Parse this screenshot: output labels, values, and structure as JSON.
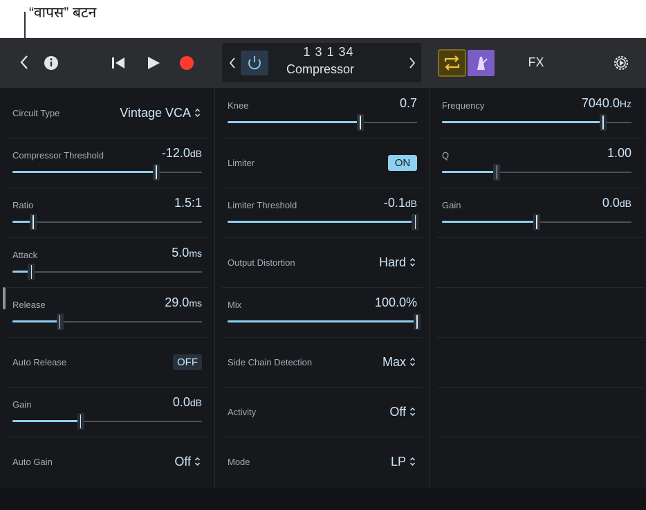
{
  "callout": {
    "label": "“वापस” बटन"
  },
  "toolbar": {
    "position": "1 3 1  34",
    "plugin": "Compressor",
    "fx": "FX"
  },
  "columns": [
    [
      {
        "kind": "menu",
        "label": "Circuit Type",
        "value": "Vintage VCA"
      },
      {
        "kind": "slider",
        "label": "Compressor Threshold",
        "value": "-12.0",
        "unit": "dB"
      },
      {
        "kind": "slider",
        "label": "Ratio",
        "value": "1.5:1"
      },
      {
        "kind": "slider",
        "label": "Attack",
        "value": "5.0",
        "unit": "ms"
      },
      {
        "kind": "slider",
        "label": "Release",
        "value": "29.0",
        "unit": "ms"
      },
      {
        "kind": "toggle",
        "active": false,
        "label": "Auto Release",
        "value": "OFF"
      },
      {
        "kind": "slider",
        "label": "Gain",
        "value": "0.0",
        "unit": "dB"
      },
      {
        "kind": "menu",
        "label": "Auto Gain",
        "value": "Off"
      }
    ],
    [
      {
        "kind": "slider",
        "label": "Knee",
        "value": "0.7"
      },
      {
        "kind": "toggle",
        "active": true,
        "label": "Limiter",
        "value": "ON"
      },
      {
        "kind": "slider",
        "label": "Limiter Threshold",
        "value": "-0.1",
        "unit": "dB"
      },
      {
        "kind": "menu",
        "label": "Output Distortion",
        "value": "Hard"
      },
      {
        "kind": "slider",
        "label": "Mix",
        "value": "100.0%"
      },
      {
        "kind": "menu",
        "label": "Side Chain Detection",
        "value": "Max"
      },
      {
        "kind": "menu",
        "label": "Activity",
        "value": "Off"
      },
      {
        "kind": "menu",
        "label": "Mode",
        "value": "LP"
      }
    ],
    [
      {
        "kind": "slider",
        "label": "Frequency",
        "value": "7040.0",
        "unit": "Hz"
      },
      {
        "kind": "slider",
        "label": "Q",
        "value": "1.00"
      },
      {
        "kind": "slider",
        "label": "Gain",
        "value": "0.0",
        "unit": "dB"
      }
    ]
  ]
}
